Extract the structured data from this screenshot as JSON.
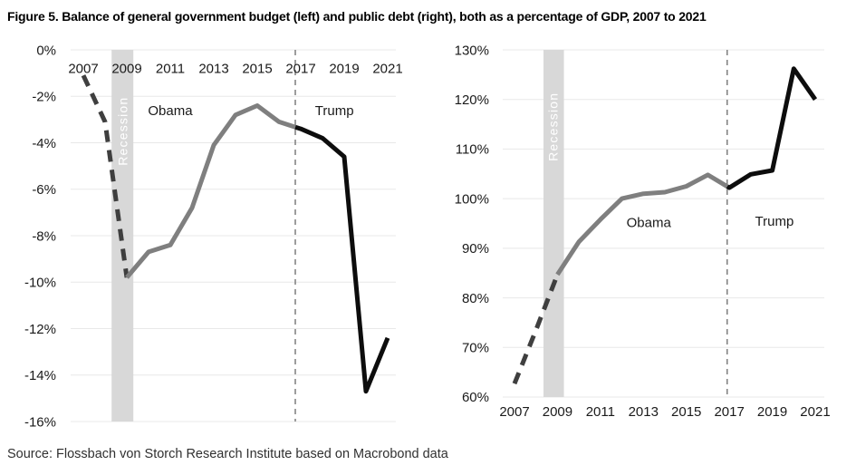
{
  "title": "Figure 5. Balance of general government budget (left) and public debt (right), both as a percentage of GDP, 2007 to 2021",
  "source": "Source: Flossbach von Storch Research Institute based on Macrobond data",
  "colors": {
    "dashed_line": "#3f3f3f",
    "obama_line": "#7f7f7f",
    "trump_line": "#0d0d0d",
    "recession_band": "#d8d8d8",
    "gridline": "#e8e8e8",
    "tick_text": "#1a1a1a",
    "divider_line": "#7d7d7d",
    "recession_text": "#ffffff",
    "annotation_text": "#1a1a1a",
    "title_text": "#000000",
    "source_text": "#303030"
  },
  "chart_data": [
    {
      "id": "budget_balance",
      "panel": "left",
      "type": "line",
      "title": "Balance of general government budget",
      "unit": "% of GDP",
      "x": [
        2007,
        2008,
        2009,
        2010,
        2011,
        2012,
        2013,
        2014,
        2015,
        2016,
        2017,
        2018,
        2019,
        2020,
        2021
      ],
      "values": [
        -1.1,
        -3.1,
        -9.8,
        -8.7,
        -8.4,
        -6.8,
        -4.1,
        -2.8,
        -2.4,
        -3.1,
        -3.4,
        -3.8,
        -4.6,
        -14.7,
        -12.4
      ],
      "ylim": [
        -16,
        0
      ],
      "y_ticks": [
        {
          "value": 0,
          "label": "0%"
        },
        {
          "value": -2,
          "label": "-2%"
        },
        {
          "value": -4,
          "label": "-4%"
        },
        {
          "value": -6,
          "label": "-6%"
        },
        {
          "value": -8,
          "label": "-8%"
        },
        {
          "value": -10,
          "label": "-10%"
        },
        {
          "value": -12,
          "label": "-12%"
        },
        {
          "value": -14,
          "label": "-14%"
        },
        {
          "value": -16,
          "label": "-16%"
        }
      ],
      "x_ticks": [
        {
          "value": 2007,
          "label": "2007"
        },
        {
          "value": 2009,
          "label": "2009"
        },
        {
          "value": 2011,
          "label": "2011"
        },
        {
          "value": 2013,
          "label": "2013"
        },
        {
          "value": 2015,
          "label": "2015"
        },
        {
          "value": 2017,
          "label": "2017"
        },
        {
          "value": 2019,
          "label": "2019"
        },
        {
          "value": 2021,
          "label": "2021"
        }
      ],
      "x_tick_position": "top",
      "grid": true,
      "legend": "none",
      "recession_band": {
        "from_year": 2008.3,
        "to_year": 2009.3
      },
      "divider_year": 2016.75,
      "segments": [
        {
          "name": "crisis-dashed",
          "label": "2007 to 2009 (dashed)",
          "from": 2007,
          "to": 2009,
          "style": "dashed"
        },
        {
          "name": "obama",
          "label": "Obama",
          "from": 2009,
          "to": 2016.75,
          "style": "gray"
        },
        {
          "name": "trump",
          "label": "Trump",
          "from": 2016.75,
          "to": 2021,
          "style": "black"
        }
      ],
      "annotations": [
        {
          "name": "obama-label",
          "text": "Obama",
          "year": 2011.0,
          "value": -2.6
        },
        {
          "name": "trump-label",
          "text": "Trump",
          "year": 2018.55,
          "value": -2.6
        },
        {
          "name": "recession-label",
          "text": "Recession",
          "year": 2008.82,
          "value": -3.5,
          "rotate": -90,
          "style": "recession"
        }
      ]
    },
    {
      "id": "public_debt",
      "panel": "right",
      "type": "line",
      "title": "Public debt",
      "unit": "% of GDP",
      "x": [
        2007,
        2008,
        2009,
        2010,
        2011,
        2012,
        2013,
        2014,
        2015,
        2016,
        2017,
        2018,
        2019,
        2020,
        2021
      ],
      "values": [
        62.7,
        73.5,
        84.7,
        91.3,
        95.8,
        100.0,
        101.0,
        101.3,
        102.5,
        104.8,
        102.2,
        104.9,
        105.7,
        126.2,
        120.0
      ],
      "ylim": [
        60,
        130
      ],
      "y_ticks": [
        {
          "value": 130,
          "label": "130%"
        },
        {
          "value": 120,
          "label": "120%"
        },
        {
          "value": 110,
          "label": "110%"
        },
        {
          "value": 100,
          "label": "100%"
        },
        {
          "value": 90,
          "label": "90%"
        },
        {
          "value": 80,
          "label": "80%"
        },
        {
          "value": 70,
          "label": "70%"
        },
        {
          "value": 60,
          "label": "60%"
        }
      ],
      "x_ticks": [
        {
          "value": 2007,
          "label": "2007"
        },
        {
          "value": 2009,
          "label": "2009"
        },
        {
          "value": 2011,
          "label": "2011"
        },
        {
          "value": 2013,
          "label": "2013"
        },
        {
          "value": 2015,
          "label": "2015"
        },
        {
          "value": 2017,
          "label": "2017"
        },
        {
          "value": 2019,
          "label": "2019"
        },
        {
          "value": 2021,
          "label": "2021"
        }
      ],
      "x_tick_position": "bottom",
      "grid": true,
      "legend": "none",
      "recession_band": {
        "from_year": 2008.35,
        "to_year": 2009.3
      },
      "divider_year": 2016.9,
      "segments": [
        {
          "name": "crisis-dashed",
          "label": "2007 to 2009 (dashed)",
          "from": 2007,
          "to": 2009,
          "style": "dashed"
        },
        {
          "name": "obama",
          "label": "Obama",
          "from": 2009,
          "to": 2016.9,
          "style": "gray"
        },
        {
          "name": "trump",
          "label": "Trump",
          "from": 2016.9,
          "to": 2021,
          "style": "black"
        }
      ],
      "annotations": [
        {
          "name": "obama-label",
          "text": "Obama",
          "year": 2013.25,
          "value": 95.2
        },
        {
          "name": "trump-label",
          "text": "Trump",
          "year": 2019.1,
          "value": 95.5
        },
        {
          "name": "recession-label",
          "text": "Recession",
          "year": 2008.8,
          "value": 114.5,
          "rotate": -90,
          "style": "recession"
        }
      ]
    }
  ]
}
